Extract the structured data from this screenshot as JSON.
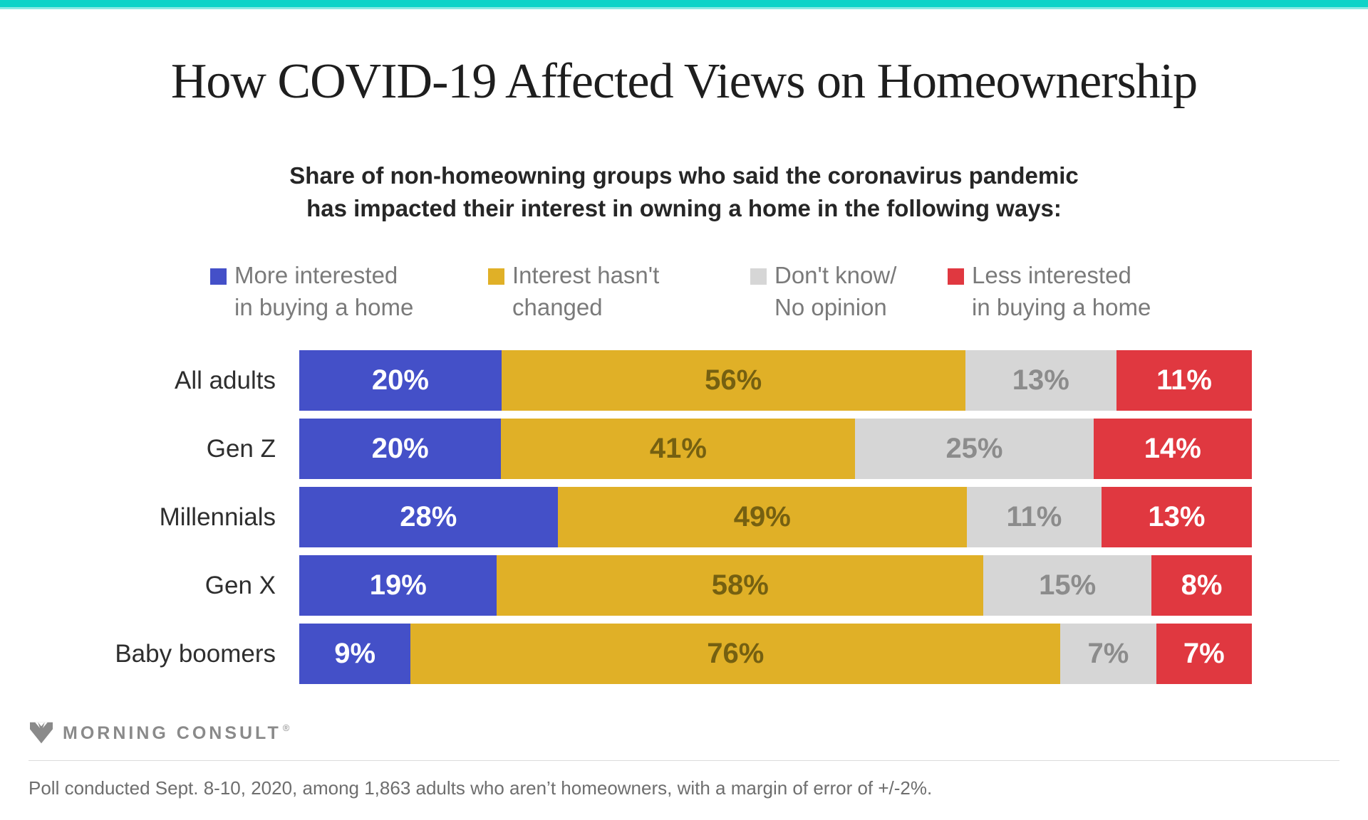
{
  "theme": {
    "accent_teal": "#0ED3C8",
    "accent_teal_light": "#8BE9E4",
    "background": "#FFFFFF",
    "logo_gray": "#8A8A8A"
  },
  "title": "How COVID-19 Affected Views on Homeownership",
  "subtitle_line1": "Share of non-homeowning groups who said the coronavirus pandemic",
  "subtitle_line2": "has impacted their interest in owning a home in the following ways:",
  "legend": [
    {
      "label_line1": "More interested",
      "label_line2": "in buying a home",
      "color": "#4450C8"
    },
    {
      "label_line1": "Interest hasn't",
      "label_line2": "changed",
      "color": "#E0B027"
    },
    {
      "label_line1": "Don't know/",
      "label_line2": "No opinion",
      "color": "#D6D6D6"
    },
    {
      "label_line1": "Less interested",
      "label_line2": "in buying a home",
      "color": "#E03840"
    }
  ],
  "chart_data": {
    "type": "bar",
    "orientation": "horizontal",
    "stacked": true,
    "value_suffix": "%",
    "categories": [
      "All adults",
      "Gen Z",
      "Millennials",
      "Gen X",
      "Baby boomers"
    ],
    "series": [
      {
        "name": "More interested in buying a home",
        "color": "#4450C8",
        "label_color": "#FFFFFF",
        "values": [
          20,
          20,
          28,
          19,
          9
        ]
      },
      {
        "name": "Interest hasn't changed",
        "color": "#E0B027",
        "label_color": "#756011",
        "values": [
          56,
          41,
          49,
          58,
          76
        ]
      },
      {
        "name": "Don't know/No opinion",
        "color": "#D6D6D6",
        "label_color": "#8C8C8C",
        "values": [
          13,
          25,
          11,
          15,
          7
        ]
      },
      {
        "name": "Less interested in buying a home",
        "color": "#E03840",
        "label_color": "#FFFFFF",
        "values": [
          11,
          14,
          13,
          8,
          7
        ]
      }
    ]
  },
  "footer": {
    "logo_text": "MORNING CONSULT",
    "logo_registered": "®",
    "note": "Poll conducted Sept. 8-10, 2020, among 1,863 adults who aren’t homeowners, with a margin of error of +/-2%."
  }
}
